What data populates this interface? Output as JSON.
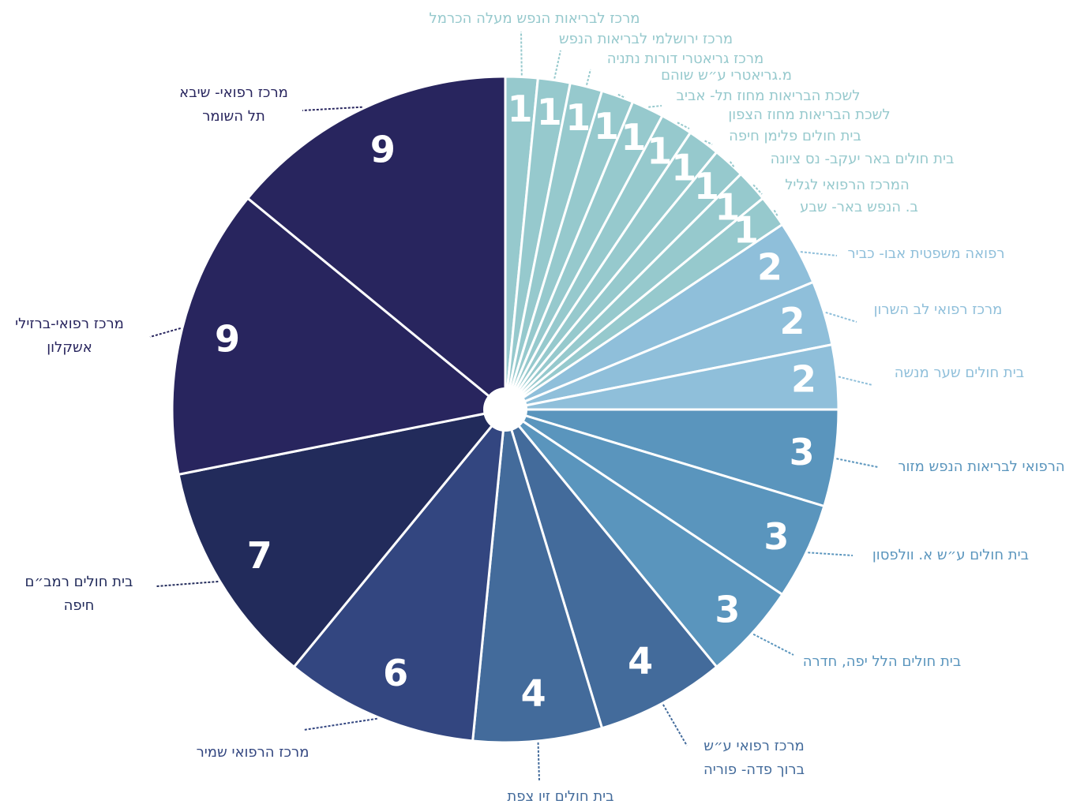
{
  "chart_data": {
    "type": "pie",
    "categories": [
      [
        "מרכז לבריאות הנפש מעלה הכרמל"
      ],
      [
        "מרכז ירושלמי לבריאות הנפש"
      ],
      [
        "מרכז גריאטרי דורות נתניה"
      ],
      [
        "מ.גריאטרי ע״ש שוהם"
      ],
      [
        "לשכת הבריאות מחוז תל- אביב"
      ],
      [
        "לשכת הבריאות מחוז הצפון"
      ],
      [
        "בית חולים פלימן חיפה"
      ],
      [
        "בית חולים באר יעקב- נס ציונה"
      ],
      [
        "המרכז הרפואי לגליל"
      ],
      [
        "ב. הנפש באר- שבע"
      ],
      [
        "רפואה משפטית אבו- כביר"
      ],
      [
        "מרכז רפואי לב השרון"
      ],
      [
        "בית חולים שער מנשה"
      ],
      [
        "הרפואי לבריאות הנפש מזור"
      ],
      [
        "בית חולים ע״ש א. וולפסון"
      ],
      [
        "בית חולים הלל יפה, חדרה"
      ],
      [
        "מרכז רפואי ע״ש",
        "ברוך פדה- פוריה"
      ],
      [
        "בית חולים זיו צפת"
      ],
      [
        "מרכז הרפואי שמיר"
      ],
      [
        "בית חולים רמב״ם",
        "חיפה"
      ],
      [
        "מרכז רפואי-ברזילי",
        "אשקלון"
      ],
      [
        "מרכז רפואי- שיבא",
        "תל השומר"
      ]
    ],
    "values": [
      1,
      1,
      1,
      1,
      1,
      1,
      1,
      1,
      1,
      1,
      2,
      2,
      2,
      3,
      3,
      3,
      4,
      4,
      6,
      7,
      9,
      9
    ],
    "colors": [
      "#96c9cd",
      "#96c9cd",
      "#96c9cd",
      "#96c9cd",
      "#96c9cd",
      "#96c9cd",
      "#96c9cd",
      "#96c9cd",
      "#96c9cd",
      "#96c9cd",
      "#8fbfda",
      "#8fbfda",
      "#8fbfda",
      "#5a95bd",
      "#5a95bd",
      "#5a95bd",
      "#436b9b",
      "#436b9b",
      "#334680",
      "#222b5b",
      "#28255e",
      "#28255e"
    ]
  }
}
